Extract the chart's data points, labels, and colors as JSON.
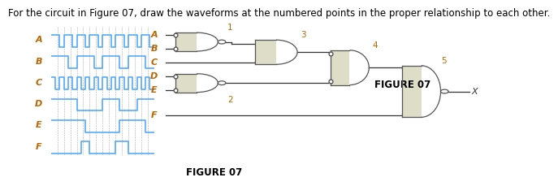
{
  "title": "For the circuit in Figure 07, draw the waveforms at the numbered points in the proper relationship to each other.",
  "figure_label": "FIGURE 07",
  "waveform_color": "#55aaff",
  "waveform_labels": [
    "A",
    "B",
    "C",
    "D",
    "E",
    "F"
  ],
  "label_color": "#bb6600",
  "circuit_label_color": "#bb6600",
  "gate_fill": "#ddddc8",
  "gate_edge": "#555555",
  "line_color": "#333333",
  "background": "#ffffff",
  "title_fontsize": 8.5,
  "figure_label_fontsize": 8.5,
  "waveform_label_fontsize": 8,
  "signal_A": [
    1,
    1,
    0,
    1,
    1,
    0,
    1,
    1,
    0,
    1,
    1,
    0,
    1,
    1,
    0,
    1,
    1,
    0,
    1,
    1,
    0,
    1,
    1,
    0
  ],
  "signal_B": [
    1,
    1,
    1,
    1,
    0,
    0,
    1,
    1,
    1,
    1,
    0,
    0,
    1,
    1,
    1,
    1,
    0,
    0,
    1,
    1,
    1,
    1,
    0,
    0
  ],
  "signal_C": [
    1,
    0,
    1,
    0,
    1,
    0,
    1,
    0,
    1,
    0,
    1,
    0,
    1,
    0,
    1,
    0,
    1,
    0,
    1,
    0,
    1,
    0,
    1,
    0
  ],
  "signal_D": [
    1,
    1,
    1,
    1,
    1,
    1,
    0,
    0,
    0,
    0,
    0,
    0,
    1,
    1,
    1,
    1,
    0,
    0,
    0,
    0,
    1,
    1,
    1,
    1
  ],
  "signal_E": [
    1,
    1,
    1,
    1,
    1,
    1,
    1,
    1,
    0,
    0,
    0,
    0,
    0,
    0,
    0,
    0,
    1,
    1,
    1,
    1,
    1,
    1,
    0,
    0
  ],
  "signal_F": [
    0,
    0,
    0,
    0,
    0,
    0,
    0,
    1,
    1,
    0,
    0,
    0,
    0,
    0,
    0,
    1,
    1,
    1,
    0,
    0,
    0,
    0,
    0,
    0
  ],
  "num_steps": 24,
  "num_grid_divs": 16
}
